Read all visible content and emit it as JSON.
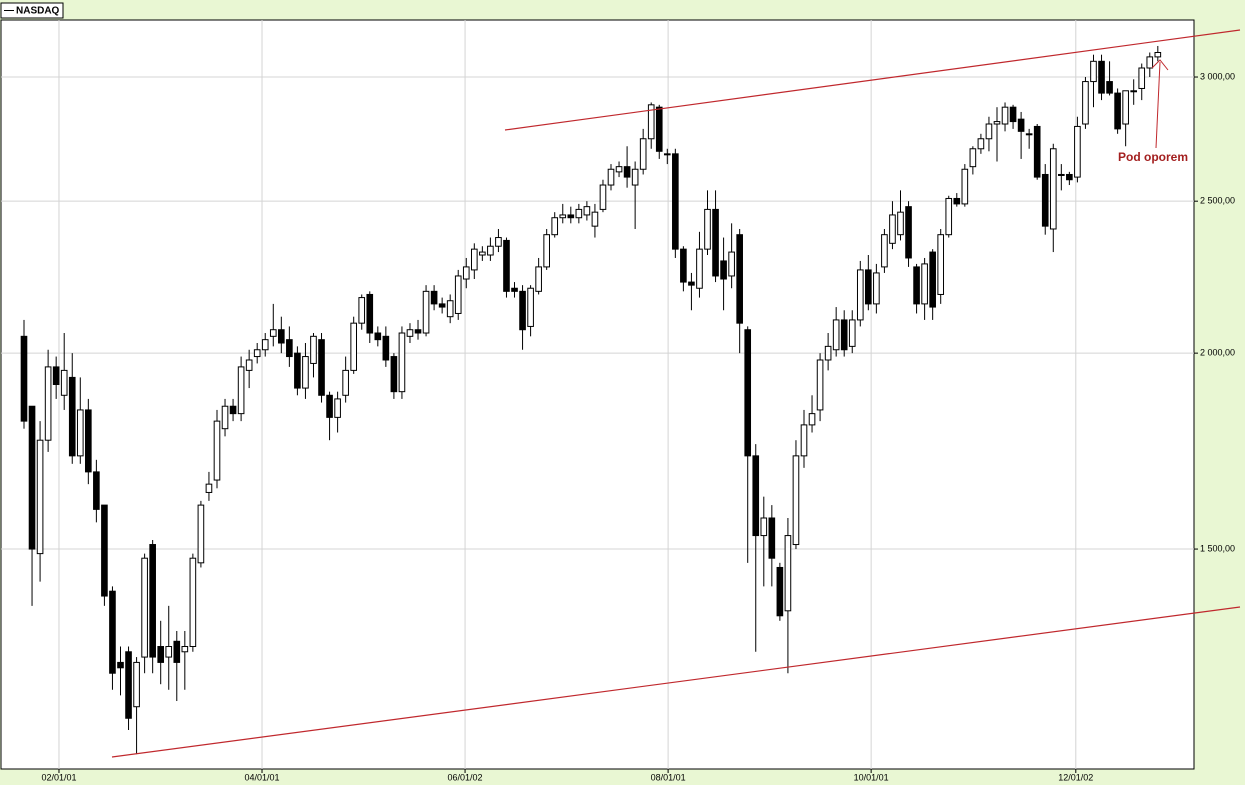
{
  "chart_data": {
    "type": "candlestick",
    "legend": "NASDAQ",
    "annotation": "Pod oporem",
    "log_scale": true,
    "grid": true,
    "up_color": "#ffffff",
    "down_color": "#000000",
    "xlim": [
      -2.86,
      145.5
    ],
    "xticks": [
      {
        "value": 4.35,
        "label": "02/01/01"
      },
      {
        "value": 29.6,
        "label": "04/01/01"
      },
      {
        "value": 54.85,
        "label": "06/01/02"
      },
      {
        "value": 80.1,
        "label": "08/01/01"
      },
      {
        "value": 105.35,
        "label": "10/01/01"
      },
      {
        "value": 130.8,
        "label": "12/01/02"
      }
    ],
    "ylim": [
      1086,
      3262
    ],
    "yticks": [
      {
        "value": 1500,
        "label": "1 500,00"
      },
      {
        "value": 2000,
        "label": "2 000,00"
      },
      {
        "value": 2500,
        "label": "2 500,00"
      },
      {
        "value": 3000,
        "label": "3 000,00"
      }
    ],
    "open": [
      2050,
      1850,
      1490,
      1760,
      1960,
      1880,
      1930,
      1720,
      1840,
      1680,
      1600,
      1410,
      1270,
      1290,
      1190,
      1280,
      1510,
      1300,
      1280,
      1310,
      1290,
      1300,
      1470,
      1630,
      1660,
      1790,
      1850,
      1830,
      1950,
      1990,
      2010,
      2050,
      2070,
      2040,
      2000,
      1900,
      1970,
      2040,
      1880,
      1820,
      1880,
      1950,
      2090,
      2180,
      2060,
      2050,
      1990,
      1890,
      2050,
      2070,
      2060,
      2190,
      2150,
      2110,
      2120,
      2230,
      2260,
      2310,
      2310,
      2340,
      2360,
      2200,
      2190,
      2080,
      2190,
      2270,
      2380,
      2440,
      2450,
      2440,
      2450,
      2410,
      2470,
      2560,
      2610,
      2630,
      2560,
      2620,
      2740,
      2870,
      2680,
      2680,
      2330,
      2220,
      2200,
      2330,
      2470,
      2290,
      2240,
      2380,
      2070,
      1720,
      1530,
      1570,
      1460,
      1370,
      1510,
      1720,
      1800,
      1840,
      1980,
      2010,
      2100,
      2020,
      2100,
      2260,
      2150,
      2270,
      2350,
      2380,
      2480,
      2270,
      2150,
      2320,
      2180,
      2380,
      2510,
      2490,
      2630,
      2700,
      2740,
      2800,
      2800,
      2870,
      2820,
      2760,
      2790,
      2600,
      2400,
      2600,
      2600,
      2590,
      2800,
      2980,
      3070,
      2980,
      2930,
      2800,
      2940,
      2950,
      3040,
      3090
    ],
    "high": [
      2100,
      1850,
      1810,
      2010,
      1990,
      2060,
      2000,
      1930,
      1870,
      1710,
      1600,
      1420,
      1300,
      1300,
      1280,
      1490,
      1520,
      1350,
      1380,
      1330,
      1330,
      1490,
      1610,
      1680,
      1840,
      1870,
      1870,
      1990,
      2010,
      2030,
      2060,
      2150,
      2110,
      2080,
      2020,
      2030,
      2060,
      2060,
      1890,
      1890,
      1990,
      2110,
      2180,
      2190,
      2080,
      2080,
      2000,
      2080,
      2090,
      2100,
      2210,
      2210,
      2170,
      2180,
      2260,
      2300,
      2350,
      2340,
      2370,
      2400,
      2370,
      2220,
      2210,
      2210,
      2300,
      2400,
      2460,
      2490,
      2480,
      2490,
      2500,
      2490,
      2580,
      2640,
      2650,
      2710,
      2650,
      2780,
      2890,
      2880,
      2700,
      2700,
      2340,
      2250,
      2390,
      2540,
      2540,
      2370,
      2420,
      2400,
      2080,
      1750,
      1620,
      1600,
      1470,
      1570,
      1760,
      1840,
      1880,
      2000,
      2060,
      2140,
      2130,
      2130,
      2290,
      2310,
      2280,
      2400,
      2500,
      2540,
      2500,
      2280,
      2300,
      2330,
      2400,
      2520,
      2530,
      2640,
      2710,
      2760,
      2830,
      2870,
      2890,
      2880,
      2850,
      2780,
      2800,
      2640,
      2720,
      2640,
      2610,
      2830,
      3000,
      3100,
      3100,
      3070,
      2950,
      2940,
      2990,
      3060,
      3110,
      3140
    ],
    "low": [
      1790,
      1380,
      1430,
      1730,
      1870,
      1840,
      1700,
      1700,
      1650,
      1560,
      1380,
      1220,
      1210,
      1150,
      1110,
      1250,
      1250,
      1230,
      1220,
      1200,
      1220,
      1290,
      1460,
      1610,
      1640,
      1770,
      1810,
      1810,
      1900,
      1970,
      1990,
      2020,
      2000,
      1960,
      1880,
      1870,
      1930,
      1860,
      1760,
      1780,
      1860,
      1940,
      2070,
      2030,
      2020,
      1960,
      1870,
      1870,
      2030,
      2040,
      2050,
      2130,
      2120,
      2090,
      2100,
      2200,
      2230,
      2290,
      2290,
      2320,
      2170,
      2170,
      2010,
      2050,
      2180,
      2260,
      2370,
      2420,
      2420,
      2420,
      2430,
      2370,
      2460,
      2540,
      2590,
      2550,
      2400,
      2600,
      2700,
      2660,
      2640,
      2300,
      2190,
      2130,
      2170,
      2310,
      2220,
      2130,
      2200,
      2000,
      1470,
      1290,
      1420,
      1420,
      1350,
      1250,
      1500,
      1690,
      1780,
      1810,
      1950,
      1990,
      1990,
      2000,
      2080,
      2130,
      2120,
      2250,
      2330,
      2360,
      2270,
      2120,
      2100,
      2100,
      2150,
      2370,
      2480,
      2480,
      2600,
      2680,
      2690,
      2650,
      2770,
      2780,
      2660,
      2700,
      2580,
      2380,
      2320,
      2540,
      2560,
      2570,
      2780,
      2870,
      2900,
      2920,
      2760,
      2710,
      2880,
      2900,
      3000,
      3070
    ],
    "close": [
      1810,
      1500,
      1760,
      1960,
      1910,
      1950,
      1720,
      1840,
      1680,
      1590,
      1400,
      1250,
      1260,
      1170,
      1270,
      1480,
      1280,
      1270,
      1300,
      1270,
      1300,
      1480,
      1600,
      1650,
      1810,
      1850,
      1830,
      1960,
      1980,
      2010,
      2040,
      2070,
      2030,
      1990,
      1900,
      1990,
      2050,
      1880,
      1820,
      1870,
      1950,
      2090,
      2170,
      2060,
      2040,
      1980,
      1890,
      2060,
      2070,
      2060,
      2190,
      2150,
      2140,
      2160,
      2240,
      2270,
      2330,
      2320,
      2340,
      2370,
      2190,
      2190,
      2070,
      2200,
      2270,
      2380,
      2440,
      2450,
      2440,
      2470,
      2480,
      2460,
      2560,
      2620,
      2630,
      2590,
      2620,
      2740,
      2880,
      2690,
      2680,
      2330,
      2220,
      2210,
      2330,
      2470,
      2240,
      2230,
      2320,
      2090,
      1720,
      1530,
      1570,
      1480,
      1360,
      1530,
      1720,
      1800,
      1830,
      1980,
      2020,
      2100,
      2010,
      2100,
      2260,
      2150,
      2250,
      2380,
      2450,
      2460,
      2300,
      2150,
      2280,
      2140,
      2380,
      2510,
      2490,
      2620,
      2700,
      2740,
      2800,
      2810,
      2870,
      2810,
      2770,
      2760,
      2590,
      2410,
      2700,
      2600,
      2580,
      2790,
      2980,
      3070,
      2930,
      2930,
      2780,
      2940,
      2940,
      3040,
      3090,
      3110
    ]
  }
}
